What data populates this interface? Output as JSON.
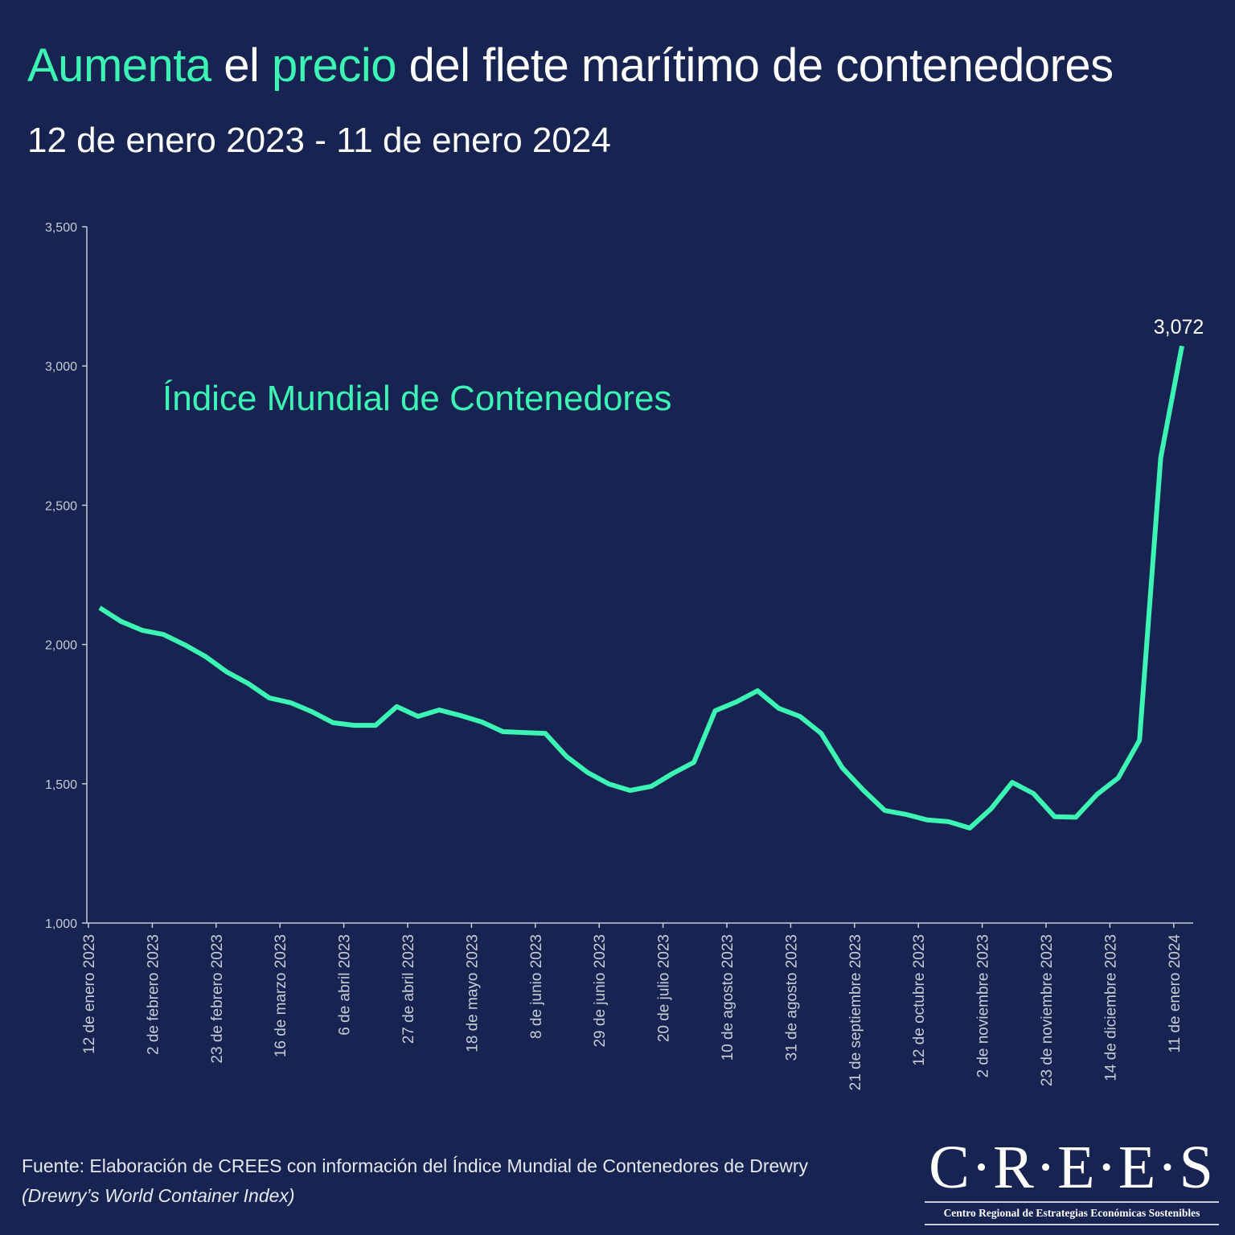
{
  "header": {
    "title_parts": [
      "Aumenta",
      " el ",
      "precio",
      " del flete marítimo de contenedores"
    ],
    "subtitle": "12 de enero 2023 - 11 de enero 2024"
  },
  "colors": {
    "background": "#172350",
    "accent": "#3cf5b4",
    "axis": "#c8ccd8"
  },
  "chart_data": {
    "type": "line",
    "title": "Aumenta el precio del flete marítimo de contenedores",
    "series": [
      {
        "name": "Índice Mundial de Contenedores",
        "values": [
          2132,
          2083,
          2051,
          2036,
          1999,
          1956,
          1901,
          1860,
          1808,
          1791,
          1759,
          1719,
          1710,
          1710,
          1777,
          1742,
          1765,
          1745,
          1722,
          1687,
          1684,
          1681,
          1598,
          1540,
          1499,
          1476,
          1491,
          1537,
          1577,
          1762,
          1794,
          1834,
          1771,
          1742,
          1681,
          1557,
          1476,
          1404,
          1390,
          1370,
          1364,
          1341,
          1410,
          1505,
          1465,
          1382,
          1380,
          1462,
          1521,
          1656,
          2670,
          3072
        ]
      }
    ],
    "end_label": "3,072",
    "ylim": [
      1000,
      3500
    ],
    "y_ticks": [
      1000,
      1500,
      2000,
      2500,
      3000,
      3500
    ],
    "y_tick_labels": [
      "1,000",
      "1,500",
      "2,000",
      "2,500",
      "3,000",
      "3,500"
    ],
    "x_tick_labels": [
      "12 de enero 2023",
      "2 de febrero 2023",
      "23 de febrero 2023",
      "16 de marzo 2023",
      "6 de abril 2023",
      "27 de abril 2023",
      "18 de mayo 2023",
      "8 de junio 2023",
      "29 de junio 2023",
      "20 de julio 2023",
      "10 de agosto 2023",
      "31 de agosto 2023",
      "21 de septiembre 2023",
      "12 de octubre 2023",
      "2 de noviembre 2023",
      "23 de noviembre 2023",
      "14 de diciembre 2023",
      "11 de enero 2024"
    ],
    "xlabel": "",
    "ylabel": "",
    "grid": false
  },
  "footer": {
    "source": "Fuente: Elaboración de CREES con información del Índice Mundial de Contenedores de Drewry",
    "source_italic": "(Drewry’s World Container Index)"
  },
  "logo": {
    "mark": "C·R·E·E·S",
    "subtitle": "Centro Regional de Estrategias Económicas Sostenibles"
  }
}
